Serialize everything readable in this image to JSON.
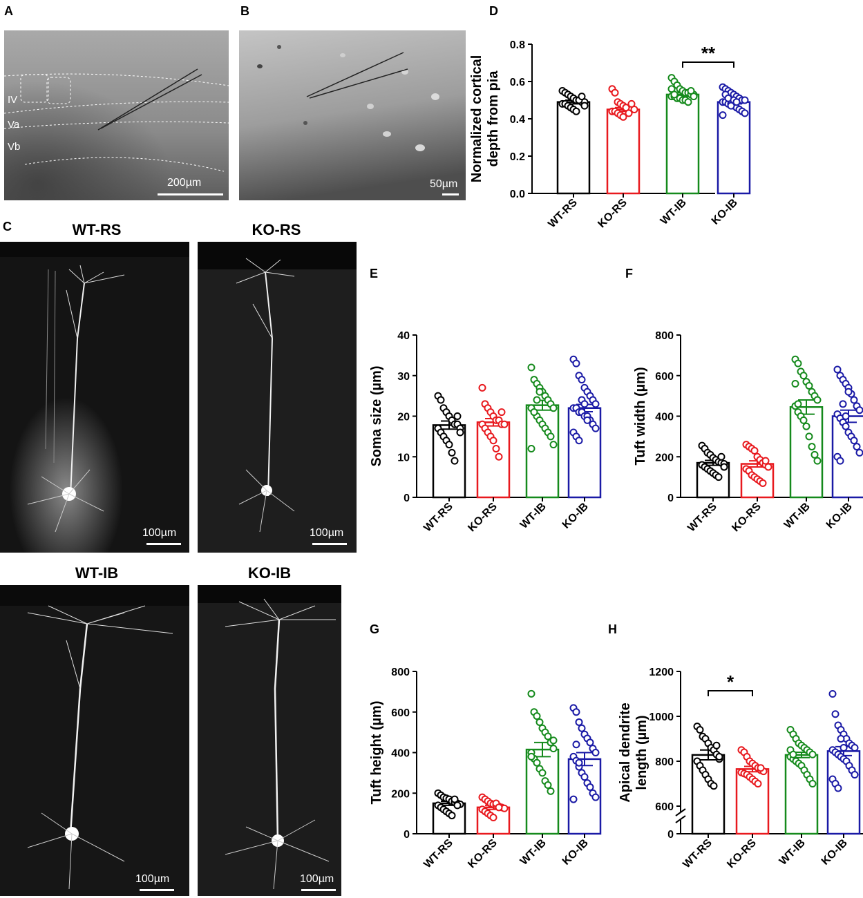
{
  "panels": {
    "A": {
      "letter": "A",
      "layers": [
        "IV",
        "Va",
        "Vb"
      ],
      "scale": "200µm"
    },
    "B": {
      "letter": "B",
      "scale": "50µm"
    },
    "C": {
      "letter": "C",
      "images": [
        {
          "title": "WT-RS",
          "scale": "100µm"
        },
        {
          "title": "KO-RS",
          "scale": "100µm"
        },
        {
          "title": "WT-IB",
          "scale": "100µm"
        },
        {
          "title": "KO-IB",
          "scale": "100µm"
        }
      ]
    }
  },
  "colors": {
    "WT-RS": "#000000",
    "KO-RS": "#e8191e",
    "WT-IB": "#158a1c",
    "KO-IB": "#1a1aa6"
  },
  "chart_data": [
    {
      "id": "D",
      "letter": "D",
      "type": "bar",
      "categories": [
        "WT-RS",
        "KO-RS",
        "WT-IB",
        "KO-IB"
      ],
      "ylabel": [
        "Normalized cortical",
        "depth from pia"
      ],
      "ylim": [
        0,
        0.8
      ],
      "yticks": [
        "0.0",
        "0.2",
        "0.4",
        "0.6",
        "0.8"
      ],
      "ytick_values": [
        0,
        0.2,
        0.4,
        0.6,
        0.8
      ],
      "means": [
        0.49,
        0.45,
        0.53,
        0.49
      ],
      "sem": [
        0.01,
        0.01,
        0.01,
        0.01
      ],
      "points": [
        [
          0.55,
          0.54,
          0.53,
          0.52,
          0.51,
          0.5,
          0.5,
          0.49,
          0.49,
          0.48,
          0.48,
          0.47,
          0.46,
          0.45,
          0.44,
          0.5,
          0.52,
          0.47
        ],
        [
          0.56,
          0.54,
          0.49,
          0.48,
          0.47,
          0.46,
          0.46,
          0.45,
          0.45,
          0.44,
          0.44,
          0.43,
          0.42,
          0.41,
          0.46,
          0.43,
          0.48
        ],
        [
          0.62,
          0.6,
          0.58,
          0.56,
          0.55,
          0.54,
          0.54,
          0.53,
          0.53,
          0.52,
          0.52,
          0.51,
          0.51,
          0.5,
          0.5,
          0.49,
          0.55,
          0.52,
          0.56,
          0.53
        ],
        [
          0.57,
          0.56,
          0.55,
          0.54,
          0.53,
          0.52,
          0.51,
          0.5,
          0.5,
          0.49,
          0.49,
          0.48,
          0.48,
          0.47,
          0.46,
          0.45,
          0.44,
          0.43,
          0.42,
          0.53,
          0.51,
          0.47,
          0.5,
          0.49
        ]
      ],
      "significance": [
        {
          "from": 2,
          "to": 3,
          "label": "**"
        }
      ]
    },
    {
      "id": "E",
      "letter": "E",
      "type": "bar",
      "categories": [
        "WT-RS",
        "KO-RS",
        "WT-IB",
        "KO-IB"
      ],
      "ylabel": [
        "Soma size (µm)"
      ],
      "ylim": [
        0,
        40
      ],
      "yticks": [
        "0",
        "10",
        "20",
        "30",
        "40"
      ],
      "ytick_values": [
        0,
        10,
        20,
        30,
        40
      ],
      "means": [
        17.8,
        18.5,
        22.7,
        22.0
      ],
      "sem": [
        1.0,
        0.9,
        1.2,
        0.9
      ],
      "points": [
        [
          25,
          24,
          22,
          21,
          20,
          19,
          18,
          18,
          17,
          17,
          16,
          15,
          14,
          13,
          11,
          9,
          20,
          16
        ],
        [
          27,
          23,
          22,
          21,
          20,
          19,
          19,
          18,
          18,
          18,
          17,
          16,
          15,
          14,
          12,
          10,
          21
        ],
        [
          32,
          29,
          28,
          27,
          26,
          25,
          24,
          23,
          22,
          22,
          21,
          20,
          19,
          18,
          17,
          16,
          15,
          13,
          12,
          21,
          24,
          26
        ],
        [
          34,
          33,
          30,
          29,
          27,
          26,
          25,
          24,
          23,
          22,
          22,
          21,
          21,
          20,
          20,
          19,
          18,
          17,
          16,
          15,
          14,
          24,
          23,
          19
        ]
      ],
      "significance": []
    },
    {
      "id": "F",
      "letter": "F",
      "type": "bar",
      "categories": [
        "WT-RS",
        "KO-RS",
        "WT-IB",
        "KO-IB"
      ],
      "ylabel": [
        "Tuft width (µm)"
      ],
      "ylim": [
        0,
        800
      ],
      "yticks": [
        "0",
        "200",
        "400",
        "600",
        "800"
      ],
      "ytick_values": [
        0,
        200,
        400,
        600,
        800
      ],
      "means": [
        170,
        165,
        445,
        400
      ],
      "sem": [
        12,
        15,
        35,
        30
      ],
      "points": [
        [
          255,
          240,
          220,
          210,
          195,
          185,
          175,
          170,
          165,
          160,
          150,
          140,
          130,
          120,
          110,
          100,
          200,
          150
        ],
        [
          260,
          250,
          240,
          230,
          200,
          185,
          170,
          160,
          150,
          140,
          130,
          110,
          100,
          90,
          80,
          70,
          180
        ],
        [
          680,
          660,
          620,
          600,
          570,
          550,
          520,
          500,
          480,
          450,
          420,
          400,
          380,
          350,
          300,
          250,
          210,
          180,
          560,
          460
        ],
        [
          630,
          600,
          580,
          560,
          540,
          510,
          480,
          450,
          430,
          410,
          390,
          370,
          350,
          320,
          300,
          280,
          250,
          220,
          200,
          180,
          460,
          400,
          520
        ]
      ],
      "significance": []
    },
    {
      "id": "G",
      "letter": "G",
      "type": "bar",
      "categories": [
        "WT-RS",
        "KO-RS",
        "WT-IB",
        "KO-IB"
      ],
      "ylabel": [
        "Tuft height (µm)"
      ],
      "ylim": [
        0,
        800
      ],
      "yticks": [
        "0",
        "200",
        "400",
        "600",
        "800"
      ],
      "ytick_values": [
        0,
        200,
        400,
        600,
        800
      ],
      "means": [
        150,
        130,
        415,
        368
      ],
      "sem": [
        10,
        10,
        35,
        32
      ],
      "points": [
        [
          200,
          190,
          180,
          175,
          170,
          160,
          155,
          150,
          145,
          140,
          130,
          120,
          110,
          100,
          90,
          170,
          140
        ],
        [
          180,
          170,
          160,
          150,
          145,
          140,
          135,
          130,
          125,
          120,
          110,
          100,
          90,
          80,
          150,
          130
        ],
        [
          690,
          600,
          580,
          550,
          520,
          500,
          480,
          450,
          420,
          400,
          370,
          350,
          320,
          300,
          260,
          240,
          210,
          460,
          380
        ],
        [
          620,
          600,
          550,
          520,
          490,
          470,
          450,
          420,
          400,
          380,
          360,
          330,
          300,
          280,
          250,
          230,
          200,
          180,
          170,
          440,
          350
        ]
      ],
      "significance": []
    },
    {
      "id": "H",
      "letter": "H",
      "type": "bar",
      "categories": [
        "WT-RS",
        "KO-RS",
        "WT-IB",
        "KO-IB"
      ],
      "ylabel": [
        "Apical dendrite",
        "length (µm)"
      ],
      "ylim": [
        0,
        1200
      ],
      "axis_break": [
        0,
        600
      ],
      "yticks": [
        "0",
        "600",
        "800",
        "1000",
        "1200"
      ],
      "ytick_values": [
        0,
        600,
        800,
        1000,
        1200
      ],
      "means": [
        828,
        765,
        828,
        845
      ],
      "sem": [
        22,
        12,
        12,
        20
      ],
      "points": [
        [
          955,
          940,
          910,
          900,
          880,
          860,
          850,
          830,
          810,
          800,
          780,
          760,
          740,
          720,
          700,
          690,
          870,
          820
        ],
        [
          850,
          840,
          820,
          800,
          790,
          780,
          770,
          760,
          755,
          750,
          745,
          740,
          730,
          720,
          710,
          700,
          770
        ],
        [
          940,
          920,
          900,
          880,
          870,
          860,
          850,
          840,
          830,
          820,
          810,
          800,
          790,
          780,
          760,
          740,
          720,
          700,
          850,
          830
        ],
        [
          1100,
          1010,
          960,
          940,
          920,
          900,
          880,
          870,
          860,
          850,
          840,
          830,
          820,
          810,
          800,
          780,
          760,
          740,
          720,
          700,
          680,
          900,
          860
        ]
      ],
      "significance": [
        {
          "from": 0,
          "to": 1,
          "label": "*"
        }
      ]
    }
  ]
}
